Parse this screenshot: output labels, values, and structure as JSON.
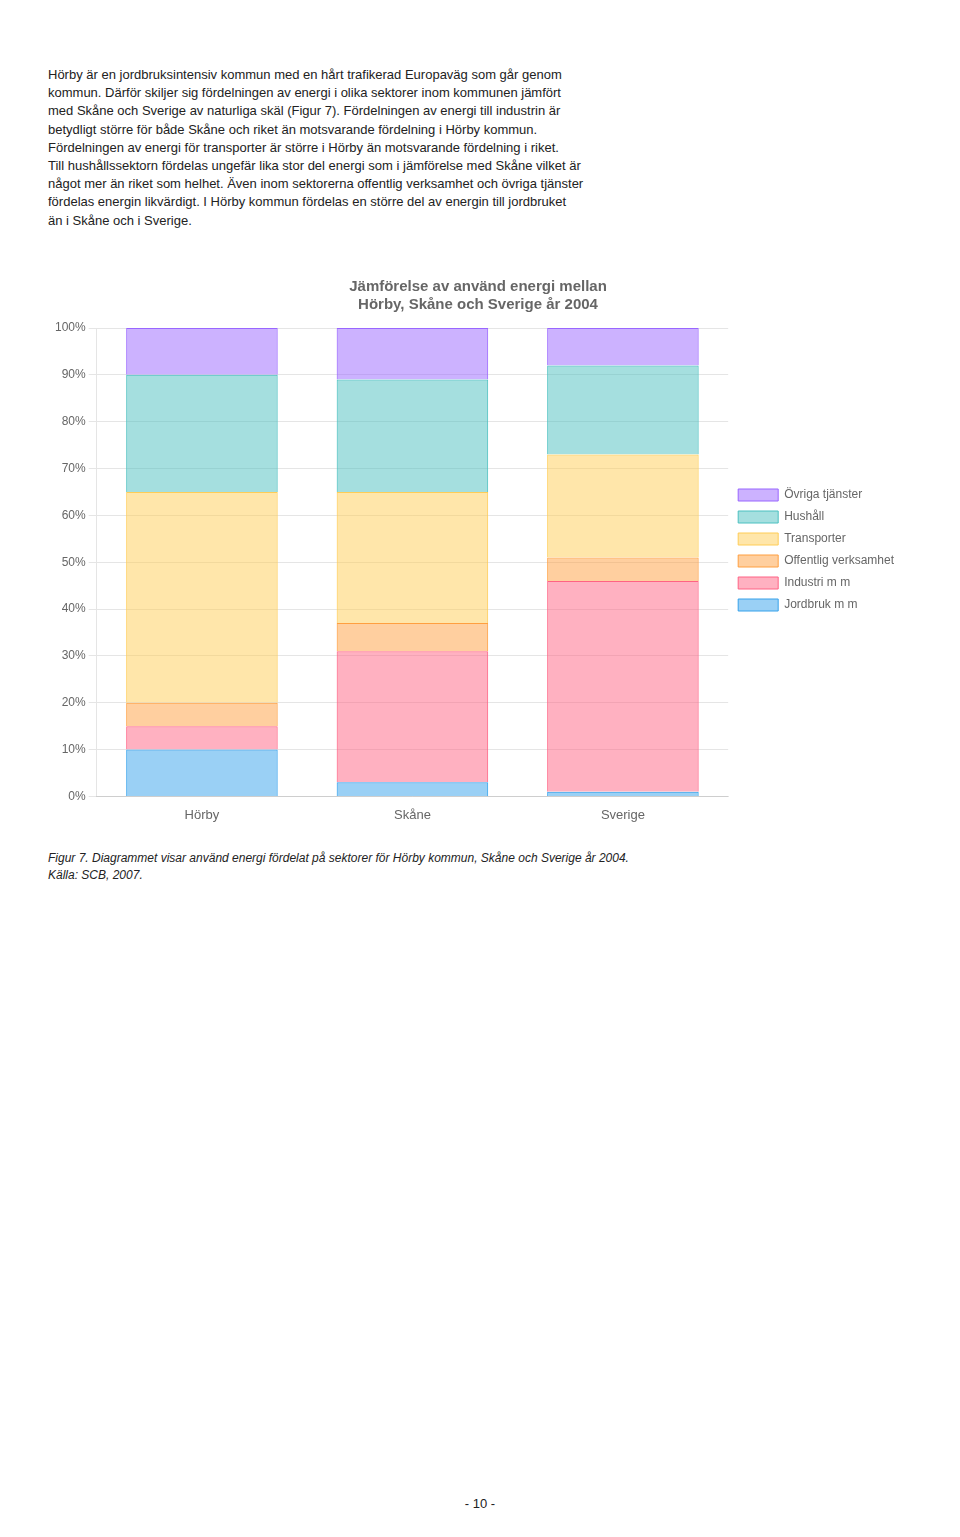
{
  "chart_data": {
    "type": "bar",
    "title": "Jämförelse av använd energi mellan\nHörby, Skåne och Sverige år 2004",
    "annotations": [
      "Hörby är en jordbruksintensiv kommun med en hårt trafikerad Europaväg som går genom\nkommun. Därför skiljer sig fördelningen av energi i olika sektorer inom kommunen jämfört\nmed Skåne och Sverige av naturliga skäl (Figur 7). Fördelningen av energi till industrin är\nbetydligt större för både Skåne och riket än motsvarande fördelning i Hörby kommun.\nFördelningen av energi för transporter är större i Hörby än motsvarande fördelning i riket.\nTill hushållssektorn fördelas ungefär lika stor del energi som i jämförelse med Skåne vilket är\nnågot mer än riket som helhet. Även inom sektorerna offentlig verksamhet och övriga tjänster\nfördelas energin likvärdigt. I Hörby kommun fördelas en större del av energin till jordbruket\nän i Skåne och i Sverige.",
      "Figur 7. Diagrammet visar använd energi fördelat på sektorer för Hörby kommun, Skåne och Sverige år 2004.\nKälla: SCB, 2007.",
      "- 10 -"
    ],
    "categories": [
      "Hörby",
      "Skåne",
      "Sverige"
    ],
    "series": [
      {
        "name": "Jordbruk m m",
        "values": [
          10,
          3,
          1
        ]
      },
      {
        "name": "Industri m m",
        "values": [
          5,
          28,
          45
        ]
      },
      {
        "name": "Offentlig verksamhet",
        "values": [
          5,
          6,
          5
        ]
      },
      {
        "name": "Transporter",
        "values": [
          45,
          28,
          22
        ]
      },
      {
        "name": "Hushåll",
        "values": [
          25,
          24,
          19
        ]
      },
      {
        "name": "Övriga tjänster",
        "values": [
          10,
          11,
          8
        ]
      }
    ],
    "stacked": true,
    "ylim": [
      0,
      100
    ],
    "yticks": [
      {
        "value": 0,
        "label": "0%"
      },
      {
        "value": 10,
        "label": "10%"
      },
      {
        "value": 20,
        "label": "20%"
      },
      {
        "value": 30,
        "label": "30%"
      },
      {
        "value": 40,
        "label": "40%"
      },
      {
        "value": 50,
        "label": "50%"
      },
      {
        "value": 60,
        "label": "60%"
      },
      {
        "value": 70,
        "label": "70%"
      },
      {
        "value": 80,
        "label": "80%"
      },
      {
        "value": 90,
        "label": "90%"
      },
      {
        "value": 100,
        "label": "100%"
      }
    ],
    "grid": true,
    "legend": "right"
  }
}
